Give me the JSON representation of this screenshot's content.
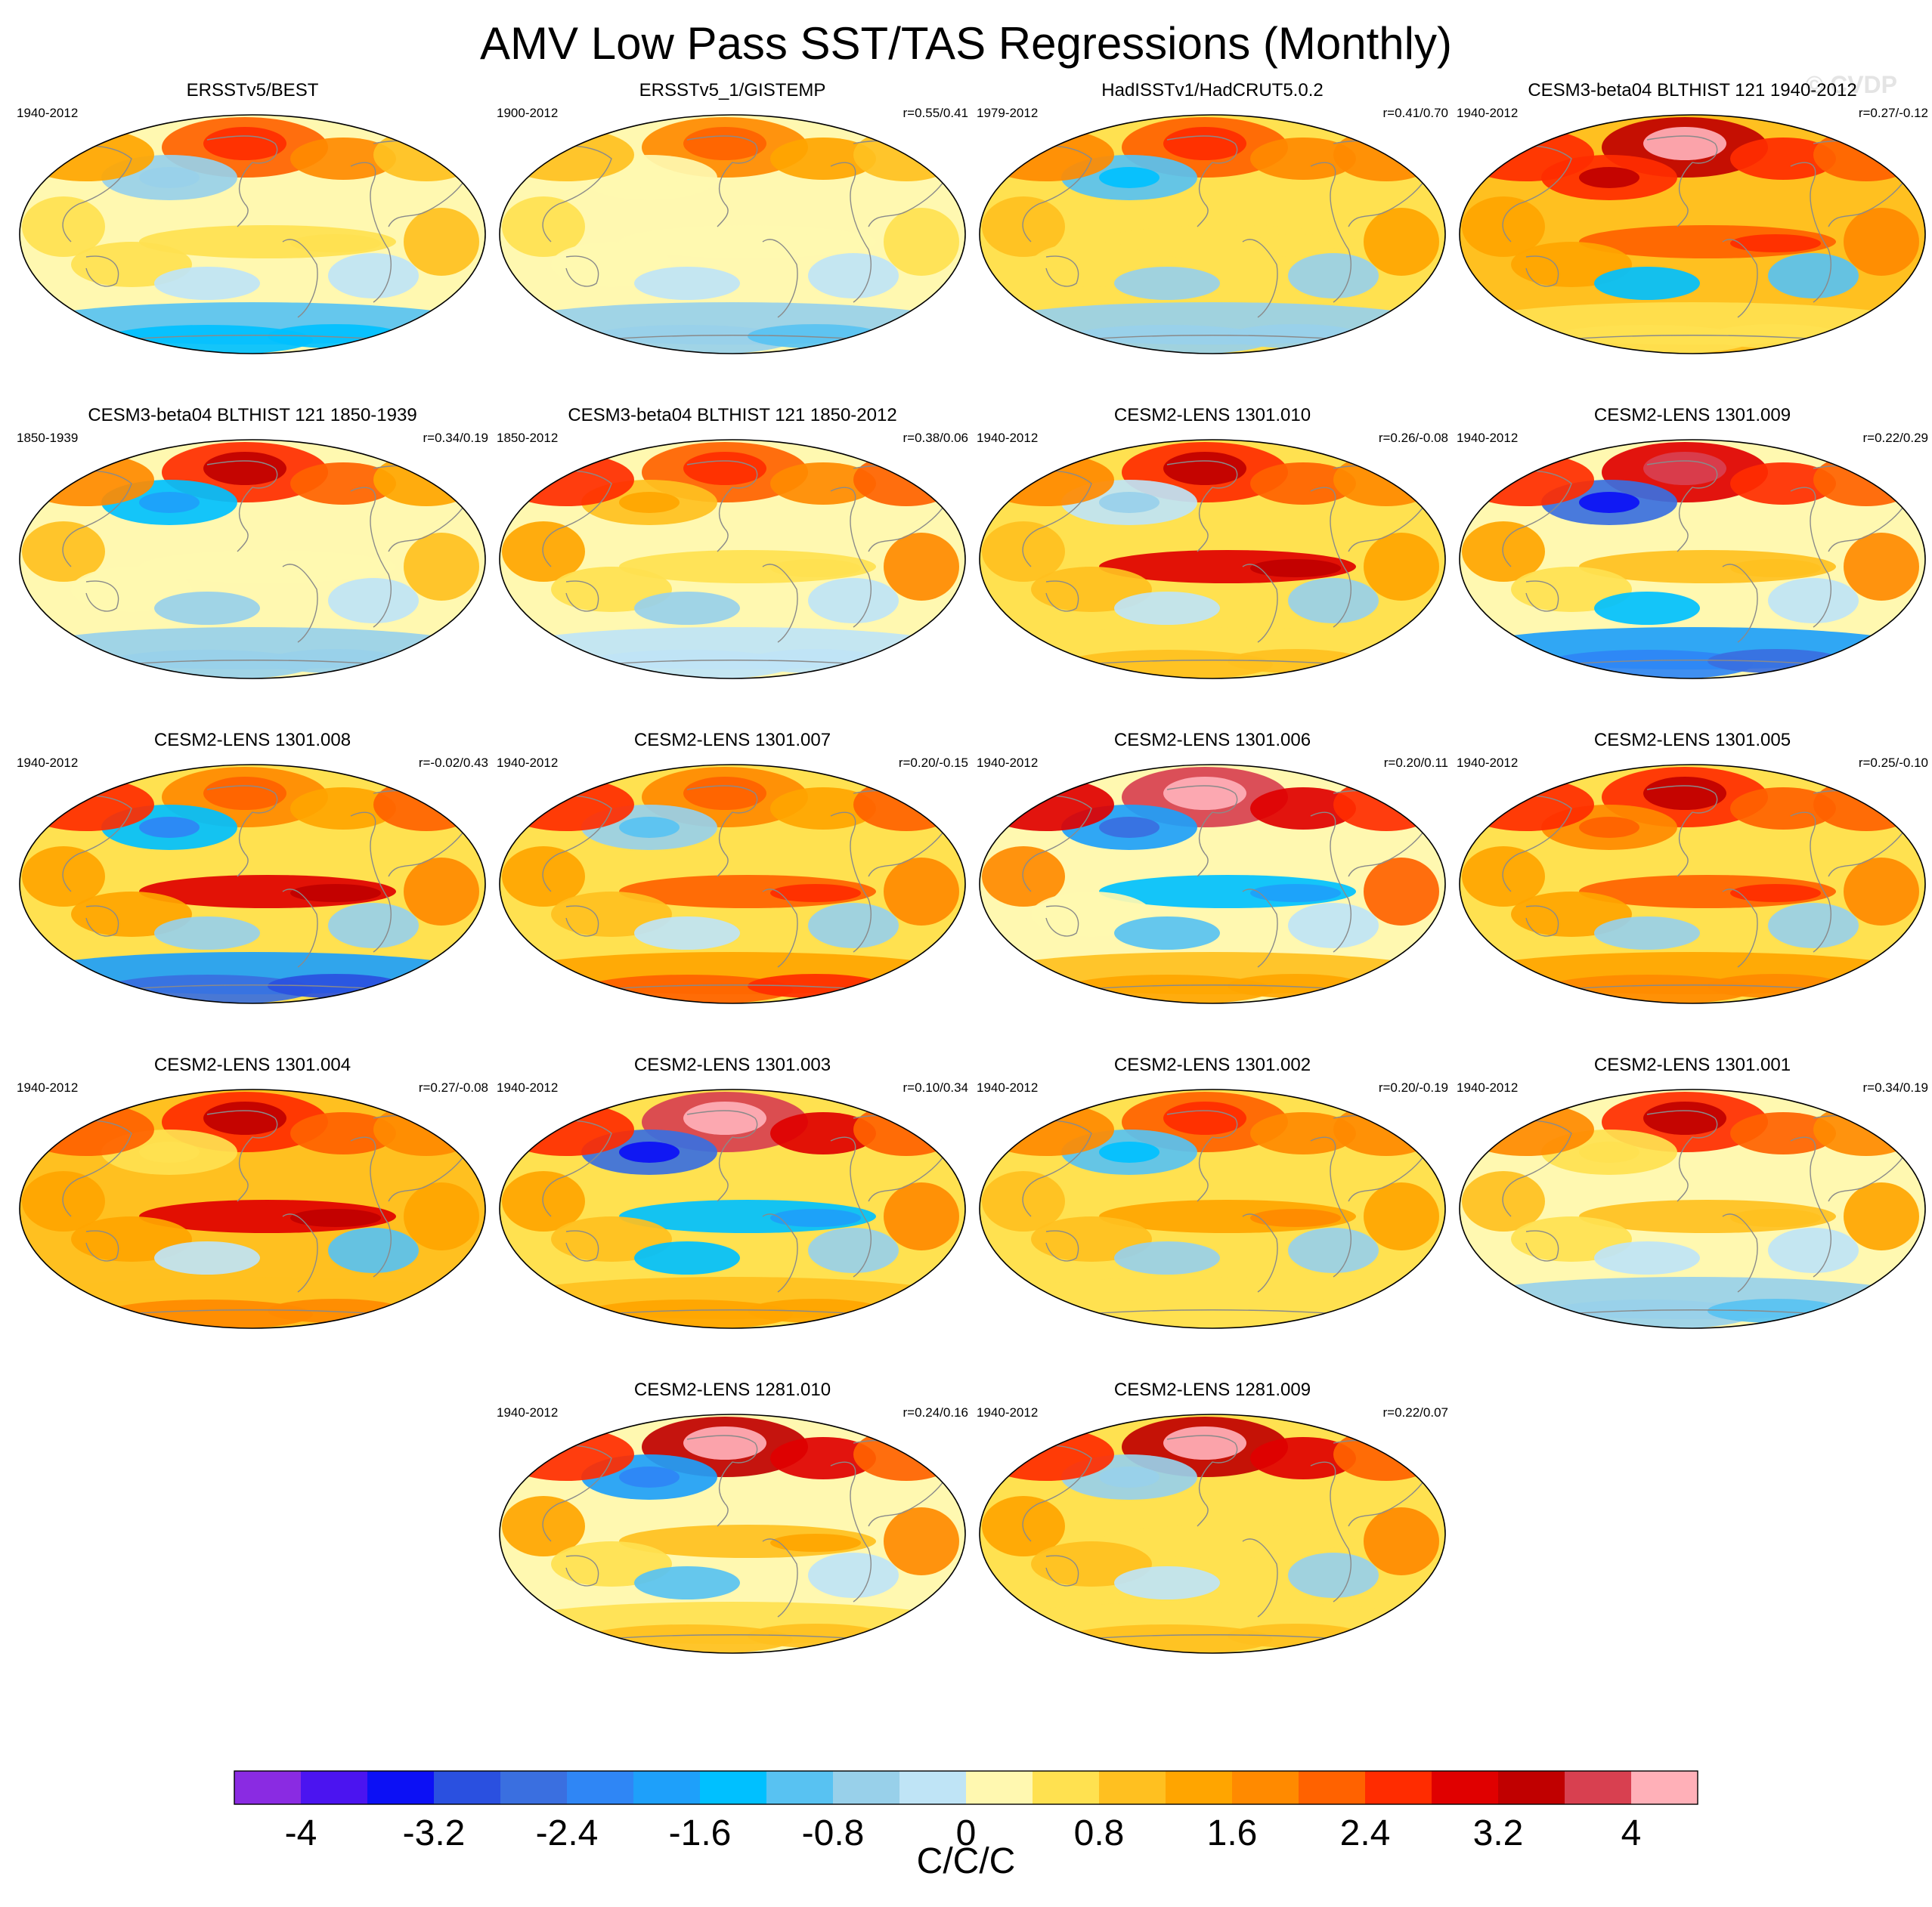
{
  "title": "AMV Low Pass SST/TAS Regressions (Monthly)",
  "watermark": "© CVDP",
  "chart_data": {
    "type": "heatmap",
    "projection": "robinson-world-maps",
    "panels": [
      {
        "title": "ERSSTv5/BEST",
        "years": "1940-2012",
        "corr": "",
        "pattern": {
          "natl": 2.2,
          "npac": -0.6,
          "eqpac": 0.4,
          "so": -1.4,
          "land": 1.2,
          "trop": 0.6
        }
      },
      {
        "title": "ERSSTv5_1/GISTEMP",
        "years": "1900-2012",
        "corr": "r=0.55/0.41",
        "pattern": {
          "natl": 1.6,
          "npac": 0.3,
          "eqpac": 0.3,
          "so": -0.8,
          "land": 0.9,
          "trop": 0.3
        }
      },
      {
        "title": "HadISSTv1/HadCRUT5.0.2",
        "years": "1979-2012",
        "corr": "r=0.41/0.70",
        "pattern": {
          "natl": 2.2,
          "npac": -1.0,
          "eqpac": 0.6,
          "so": -0.6,
          "land": 1.8,
          "trop": 0.7
        }
      },
      {
        "title": "CESM3-beta04 BLTHIST 121 1940-2012",
        "years": "1940-2012",
        "corr": "r=0.27/-0.12",
        "pattern": {
          "natl": 3.2,
          "npac": 2.6,
          "eqpac": 2.2,
          "so": 0.6,
          "land": 2.6,
          "trop": 1.4
        }
      },
      {
        "title": "CESM3-beta04 BLTHIST 121 1850-1939",
        "years": "1850-1939",
        "corr": "r=0.34/0.19",
        "pattern": {
          "natl": 2.6,
          "npac": -1.4,
          "eqpac": 0.2,
          "so": -0.6,
          "land": 1.6,
          "trop": 0.2
        }
      },
      {
        "title": "CESM3-beta04 BLTHIST 121 1850-2012",
        "years": "1850-2012",
        "corr": "r=0.38/0.06",
        "pattern": {
          "natl": 2.2,
          "npac": 1.0,
          "eqpac": 0.4,
          "so": -0.3,
          "land": 2.6,
          "trop": 0.4
        }
      },
      {
        "title": "CESM2-LENS 1301.010",
        "years": "1940-2012",
        "corr": "r=0.26/-0.08",
        "pattern": {
          "natl": 2.6,
          "npac": -0.4,
          "eqpac": 2.8,
          "so": 0.8,
          "land": 1.8,
          "trop": 1.0
        }
      },
      {
        "title": "CESM2-LENS 1301.009",
        "years": "1940-2012",
        "corr": "r=0.22/0.29",
        "pattern": {
          "natl": 3.0,
          "npac": -2.6,
          "eqpac": 0.8,
          "so": -2.4,
          "land": 2.6,
          "trop": 0.6
        }
      },
      {
        "title": "CESM2-LENS 1301.008",
        "years": "1940-2012",
        "corr": "r=-0.02/0.43",
        "pattern": {
          "natl": 1.6,
          "npac": -1.6,
          "eqpac": 2.8,
          "so": -2.6,
          "land": 2.6,
          "trop": 1.2
        }
      },
      {
        "title": "CESM2-LENS 1301.007",
        "years": "1940-2012",
        "corr": "r=0.20/-0.15",
        "pattern": {
          "natl": 1.8,
          "npac": -0.8,
          "eqpac": 2.2,
          "so": 2.2,
          "land": 2.4,
          "trop": 1.0
        }
      },
      {
        "title": "CESM2-LENS 1301.006",
        "years": "1940-2012",
        "corr": "r=0.20/0.11",
        "pattern": {
          "natl": 3.6,
          "npac": -2.0,
          "eqpac": -1.6,
          "so": 1.2,
          "land": 3.0,
          "trop": 0.2
        }
      },
      {
        "title": "CESM2-LENS 1301.005",
        "years": "1940-2012",
        "corr": "r=0.25/-0.10",
        "pattern": {
          "natl": 2.6,
          "npac": 1.6,
          "eqpac": 2.2,
          "so": 1.8,
          "land": 2.6,
          "trop": 1.2
        }
      },
      {
        "title": "CESM2-LENS 1301.004",
        "years": "1940-2012",
        "corr": "r=0.27/-0.08",
        "pattern": {
          "natl": 2.6,
          "npac": 0.4,
          "eqpac": 2.8,
          "so": 1.6,
          "land": 2.0,
          "trop": 1.4
        }
      },
      {
        "title": "CESM2-LENS 1301.003",
        "years": "1940-2012",
        "corr": "r=0.10/0.34",
        "pattern": {
          "natl": 3.6,
          "npac": -2.6,
          "eqpac": -1.4,
          "so": 1.2,
          "land": 2.6,
          "trop": 1.0
        }
      },
      {
        "title": "CESM2-LENS 1301.002",
        "years": "1940-2012",
        "corr": "r=0.20/-0.19",
        "pattern": {
          "natl": 2.2,
          "npac": -1.0,
          "eqpac": 1.4,
          "so": 0.6,
          "land": 1.8,
          "trop": 0.8
        }
      },
      {
        "title": "CESM2-LENS 1301.001",
        "years": "1940-2012",
        "corr": "r=0.34/0.19",
        "pattern": {
          "natl": 2.6,
          "npac": 0.6,
          "eqpac": 0.8,
          "so": -0.8,
          "land": 1.8,
          "trop": 0.6
        }
      },
      {
        "title": "CESM2-LENS 1281.010",
        "years": "1940-2012",
        "corr": "r=0.24/0.16",
        "pattern": {
          "natl": 3.4,
          "npac": -1.8,
          "eqpac": 1.0,
          "so": 0.8,
          "land": 2.6,
          "trop": 0.6
        }
      },
      {
        "title": "CESM2-LENS 1281.009",
        "years": "1940-2012",
        "corr": "r=0.22/0.07",
        "pattern": {
          "natl": 3.4,
          "npac": -0.6,
          "eqpac": 0.6,
          "so": 1.0,
          "land": 2.6,
          "trop": 0.8
        }
      }
    ],
    "colorbar": {
      "levels": [
        -4.4,
        -4.0,
        -3.6,
        -3.2,
        -2.8,
        -2.4,
        -2.0,
        -1.6,
        -1.2,
        -0.8,
        -0.4,
        0.0,
        0.4,
        0.8,
        1.2,
        1.6,
        2.0,
        2.4,
        2.8,
        3.2,
        3.6,
        4.0,
        4.4
      ],
      "colors": [
        "#8a2be2",
        "#4b14f0",
        "#0c10f5",
        "#2a50e0",
        "#3a6fe0",
        "#2f86f5",
        "#1ea0fa",
        "#00c0ff",
        "#58c2f2",
        "#98d0ea",
        "#bfe4f6",
        "#fff8b0",
        "#ffe150",
        "#ffc020",
        "#ffa500",
        "#ff8a00",
        "#ff6200",
        "#ff2c00",
        "#e00000",
        "#c00000",
        "#d84050",
        "#ffb0b8"
      ],
      "tick_labels": [
        "-4",
        "-3.2",
        "-2.4",
        "-1.6",
        "-0.8",
        "0",
        "0.8",
        "1.6",
        "2.4",
        "3.2",
        "4"
      ],
      "tick_values": [
        -4,
        -3.2,
        -2.4,
        -1.6,
        -0.8,
        0,
        0.8,
        1.6,
        2.4,
        3.2,
        4
      ],
      "units": "C/C/C"
    }
  }
}
